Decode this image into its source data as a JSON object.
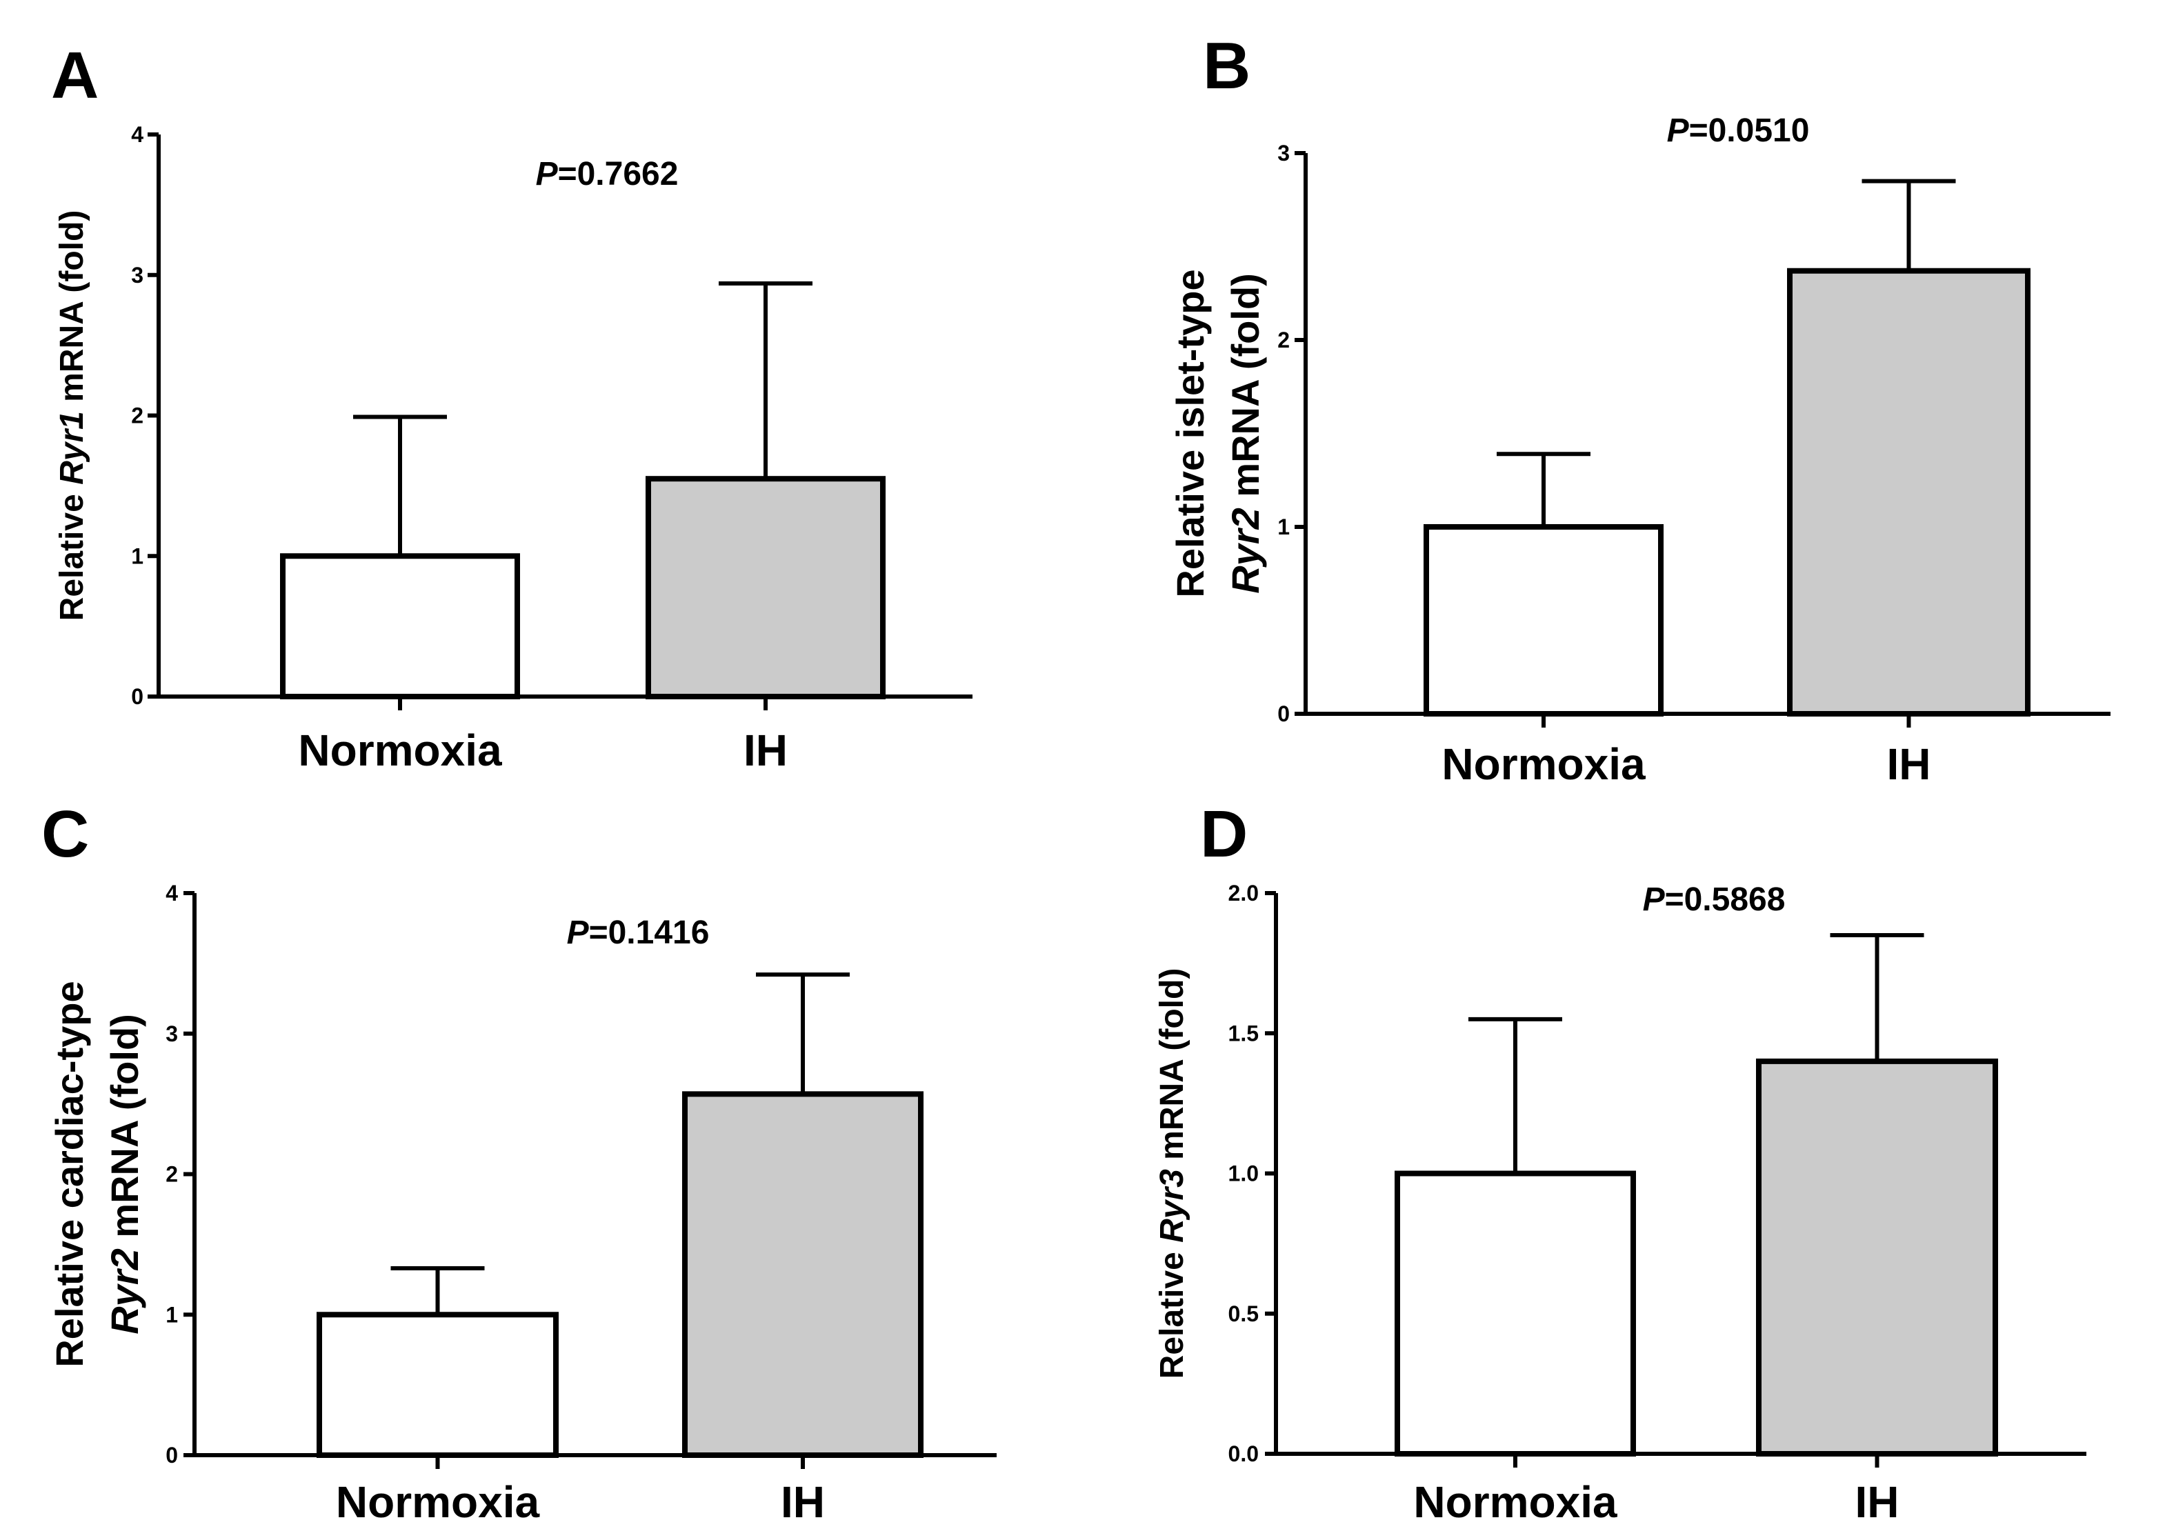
{
  "chart_data": [
    {
      "type": "bar",
      "panel": "A",
      "categories": [
        "Normoxia",
        "IH"
      ],
      "values": [
        1.0,
        1.55
      ],
      "errors": [
        0.99,
        1.39
      ],
      "colors": [
        "#ffffff",
        "#cbcbcb"
      ],
      "p_label": "P",
      "p_value": "=0.7662",
      "ylabel_lines": [
        [
          "Relative ",
          {
            "t": "Ryr1",
            "i": true
          },
          " mRNA (fold)"
        ]
      ],
      "ylim": [
        0,
        4
      ],
      "ticks": [
        0,
        1,
        2,
        3,
        4
      ],
      "tick_labels": [
        "0",
        "1",
        "2",
        "3",
        "4"
      ]
    },
    {
      "type": "bar",
      "panel": "B",
      "categories": [
        "Normoxia",
        "IH"
      ],
      "values": [
        1.0,
        2.37
      ],
      "errors": [
        0.39,
        0.48
      ],
      "colors": [
        "#ffffff",
        "#cbcbcb"
      ],
      "p_label": "P",
      "p_value": "=0.0510",
      "ylabel_lines": [
        [
          "Relative islet-type"
        ],
        [
          {
            "t": "Ryr2",
            "i": true
          },
          " mRNA (fold)"
        ]
      ],
      "ylim": [
        0,
        3
      ],
      "ticks": [
        0,
        1,
        2,
        3
      ],
      "tick_labels": [
        "0",
        "1",
        "2",
        "3"
      ]
    },
    {
      "type": "bar",
      "panel": "C",
      "categories": [
        "Normoxia",
        "IH"
      ],
      "values": [
        1.0,
        2.57
      ],
      "errors": [
        0.33,
        0.85
      ],
      "colors": [
        "#ffffff",
        "#cbcbcb"
      ],
      "p_label": "P",
      "p_value": "=0.1416",
      "ylabel_lines": [
        [
          "Relative cardiac-type"
        ],
        [
          {
            "t": "Ryr2",
            "i": true
          },
          " mRNA (fold)"
        ]
      ],
      "ylim": [
        0,
        4
      ],
      "ticks": [
        0,
        1,
        2,
        3,
        4
      ],
      "tick_labels": [
        "0",
        "1",
        "2",
        "3",
        "4"
      ]
    },
    {
      "type": "bar",
      "panel": "D",
      "categories": [
        "Normoxia",
        "IH"
      ],
      "values": [
        1.0,
        1.4
      ],
      "errors": [
        0.55,
        0.45
      ],
      "colors": [
        "#ffffff",
        "#cbcbcb"
      ],
      "p_label": "P",
      "p_value": "=0.5868",
      "ylabel_lines": [
        [
          "Relative ",
          {
            "t": "Ryr3",
            "i": true
          },
          " mRNA (fold)"
        ]
      ],
      "ylim": [
        0,
        2
      ],
      "ticks": [
        0,
        0.5,
        1,
        1.5,
        2
      ],
      "tick_labels": [
        "0.0",
        "0.5",
        "1.0",
        "1.5",
        "2.0"
      ]
    }
  ]
}
